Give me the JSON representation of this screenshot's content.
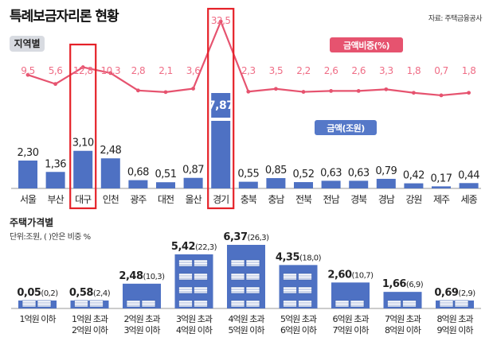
{
  "title": "특례보금자리론 현황",
  "source": "자료: 주택금융공사",
  "colors": {
    "bar": "#4e71c3",
    "bar_dark": "#3d5fae",
    "line": "#e6536f",
    "line_label": "#ef6d86",
    "highlight": "#e52128",
    "legend_box": "#5578c8",
    "label_bg": "#d8dbe1",
    "axis": "#999999"
  },
  "chart_data": [
    {
      "type": "bar+line",
      "title": "지역별",
      "categories": [
        "서울",
        "부산",
        "대구",
        "인천",
        "광주",
        "대전",
        "울산",
        "경기",
        "충북",
        "충남",
        "전북",
        "전남",
        "경북",
        "경남",
        "강원",
        "제주",
        "세종"
      ],
      "series": [
        {
          "name": "금액(조원)",
          "type": "bar",
          "values": [
            2.3,
            1.36,
            3.1,
            2.48,
            0.68,
            0.51,
            0.87,
            7.87,
            0.55,
            0.85,
            0.52,
            0.63,
            0.63,
            0.79,
            0.42,
            0.17,
            0.44
          ]
        },
        {
          "name": "금액비중(%)",
          "type": "line",
          "values": [
            9.5,
            5.6,
            12.8,
            10.3,
            2.8,
            2.1,
            3.6,
            32.5,
            2.3,
            3.5,
            2.2,
            2.6,
            2.6,
            3.3,
            1.8,
            0.7,
            1.8
          ]
        }
      ],
      "bar_labels": [
        "2,30",
        "1,36",
        "3,10",
        "2,48",
        "0,68",
        "0,51",
        "0,87",
        "7,87",
        "0,55",
        "0,85",
        "0,52",
        "0,63",
        "0,63",
        "0,79",
        "0,42",
        "0,17",
        "0,44"
      ],
      "line_labels": [
        "9,5",
        "5,6",
        "12,8",
        "10,3",
        "2,8",
        "2,1",
        "3,6",
        "32,5",
        "2,3",
        "3,5",
        "2,2",
        "2,6",
        "2,6",
        "3,3",
        "1,8",
        "0,7",
        "1,8"
      ],
      "highlighted": [
        "대구",
        "경기"
      ],
      "legend_placement": "top-right"
    },
    {
      "type": "bar",
      "title": "주택가격별",
      "unit_note": "단위:조원, ( )안은 비중 %",
      "categories": [
        [
          "1억원 이하"
        ],
        [
          "1억원 초과",
          "2억원 이하"
        ],
        [
          "2억원 초과",
          "3억원 이하"
        ],
        [
          "3억원 초과",
          "4억원 이하"
        ],
        [
          "4억원 초과",
          "5억원 이하"
        ],
        [
          "5억원 초과",
          "6억원 이하"
        ],
        [
          "6억원 초과",
          "7억원 이하"
        ],
        [
          "7억원 초과",
          "8억원 이하"
        ],
        [
          "8억원 초과",
          "9억원 이하"
        ]
      ],
      "values": [
        0.05,
        0.58,
        2.48,
        5.42,
        6.37,
        4.35,
        2.6,
        1.66,
        0.69
      ],
      "shares": [
        0.2,
        2.4,
        10.3,
        22.3,
        26.3,
        18.0,
        10.7,
        6.9,
        2.9
      ],
      "value_labels": [
        "0,05",
        "0,58",
        "2,48",
        "5,42",
        "6,37",
        "4,35",
        "2,60",
        "1,66",
        "0,69"
      ],
      "share_labels": [
        "(0,2)",
        "(2,4)",
        "(10,3)",
        "(22,3)",
        "(26,3)",
        "(18,0)",
        "(10,7)",
        "(6,9)",
        "(2,9)"
      ],
      "icon": "money-stack-icon"
    }
  ]
}
